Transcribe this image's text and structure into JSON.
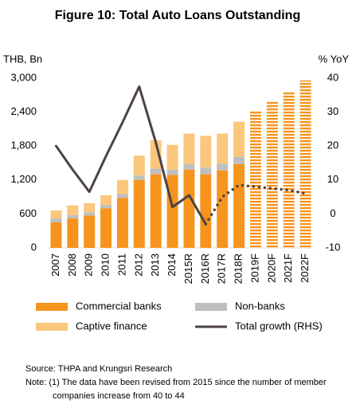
{
  "chart_data": {
    "type": "bar_line",
    "title": "Figure 10: Total Auto Loans Outstanding",
    "y_label": "THB, Bn",
    "y2_label": "% YoY",
    "categories": [
      "2007",
      "2008",
      "2009",
      "2010",
      "2011",
      "2012",
      "2013",
      "2014",
      "2015R",
      "2016R",
      "2017R",
      "2018R",
      "2019F",
      "2020F",
      "2021F",
      "2022F"
    ],
    "series": [
      {
        "name": "Commercial banks",
        "color": "#f7941d",
        "values": [
          450,
          520,
          570,
          700,
          880,
          1200,
          1300,
          1290,
          1380,
          1300,
          1370,
          1480,
          null,
          null,
          null,
          null
        ]
      },
      {
        "name": "Non-banks",
        "color": "#bfbfbf",
        "values": [
          70,
          60,
          60,
          60,
          70,
          80,
          100,
          90,
          100,
          120,
          120,
          130,
          null,
          null,
          null,
          null
        ]
      },
      {
        "name": "Captive finance",
        "color": "#fbc77c",
        "values": [
          140,
          170,
          160,
          170,
          250,
          350,
          500,
          440,
          540,
          560,
          530,
          620,
          null,
          null,
          null,
          null
        ]
      },
      {
        "color": "#f7941d",
        "pattern": "striped",
        "values": [
          null,
          null,
          null,
          null,
          null,
          null,
          null,
          null,
          null,
          null,
          null,
          null,
          2410,
          2600,
          2770,
          2960
        ]
      },
      {
        "name": "Total growth (RHS)",
        "color": "#4d4242",
        "axis": "y2",
        "dotted_from": 9,
        "values": [
          20,
          13,
          6.5,
          17,
          27,
          37.5,
          21,
          2,
          5.5,
          -3,
          5,
          8.5,
          8,
          7.5,
          7,
          6
        ]
      }
    ],
    "ylim": [
      0,
      3000
    ],
    "yticks": [
      0,
      600,
      {
        "value": 1200,
        "label": "1,200"
      },
      {
        "value": 1800,
        "label": "1,800"
      },
      {
        "value": 2400,
        "label": "2,400"
      },
      {
        "value": 3000,
        "label": "3,000"
      }
    ],
    "y2lim": [
      -10,
      40
    ],
    "y2ticks": [
      -10,
      0,
      10,
      20,
      30,
      40
    ],
    "source": "Source: THPA and Krungsri Research",
    "notes": [
      "Note: (1) The data have been revised from 2015 since the number of member",
      "companies increase from 40 to 44"
    ]
  }
}
